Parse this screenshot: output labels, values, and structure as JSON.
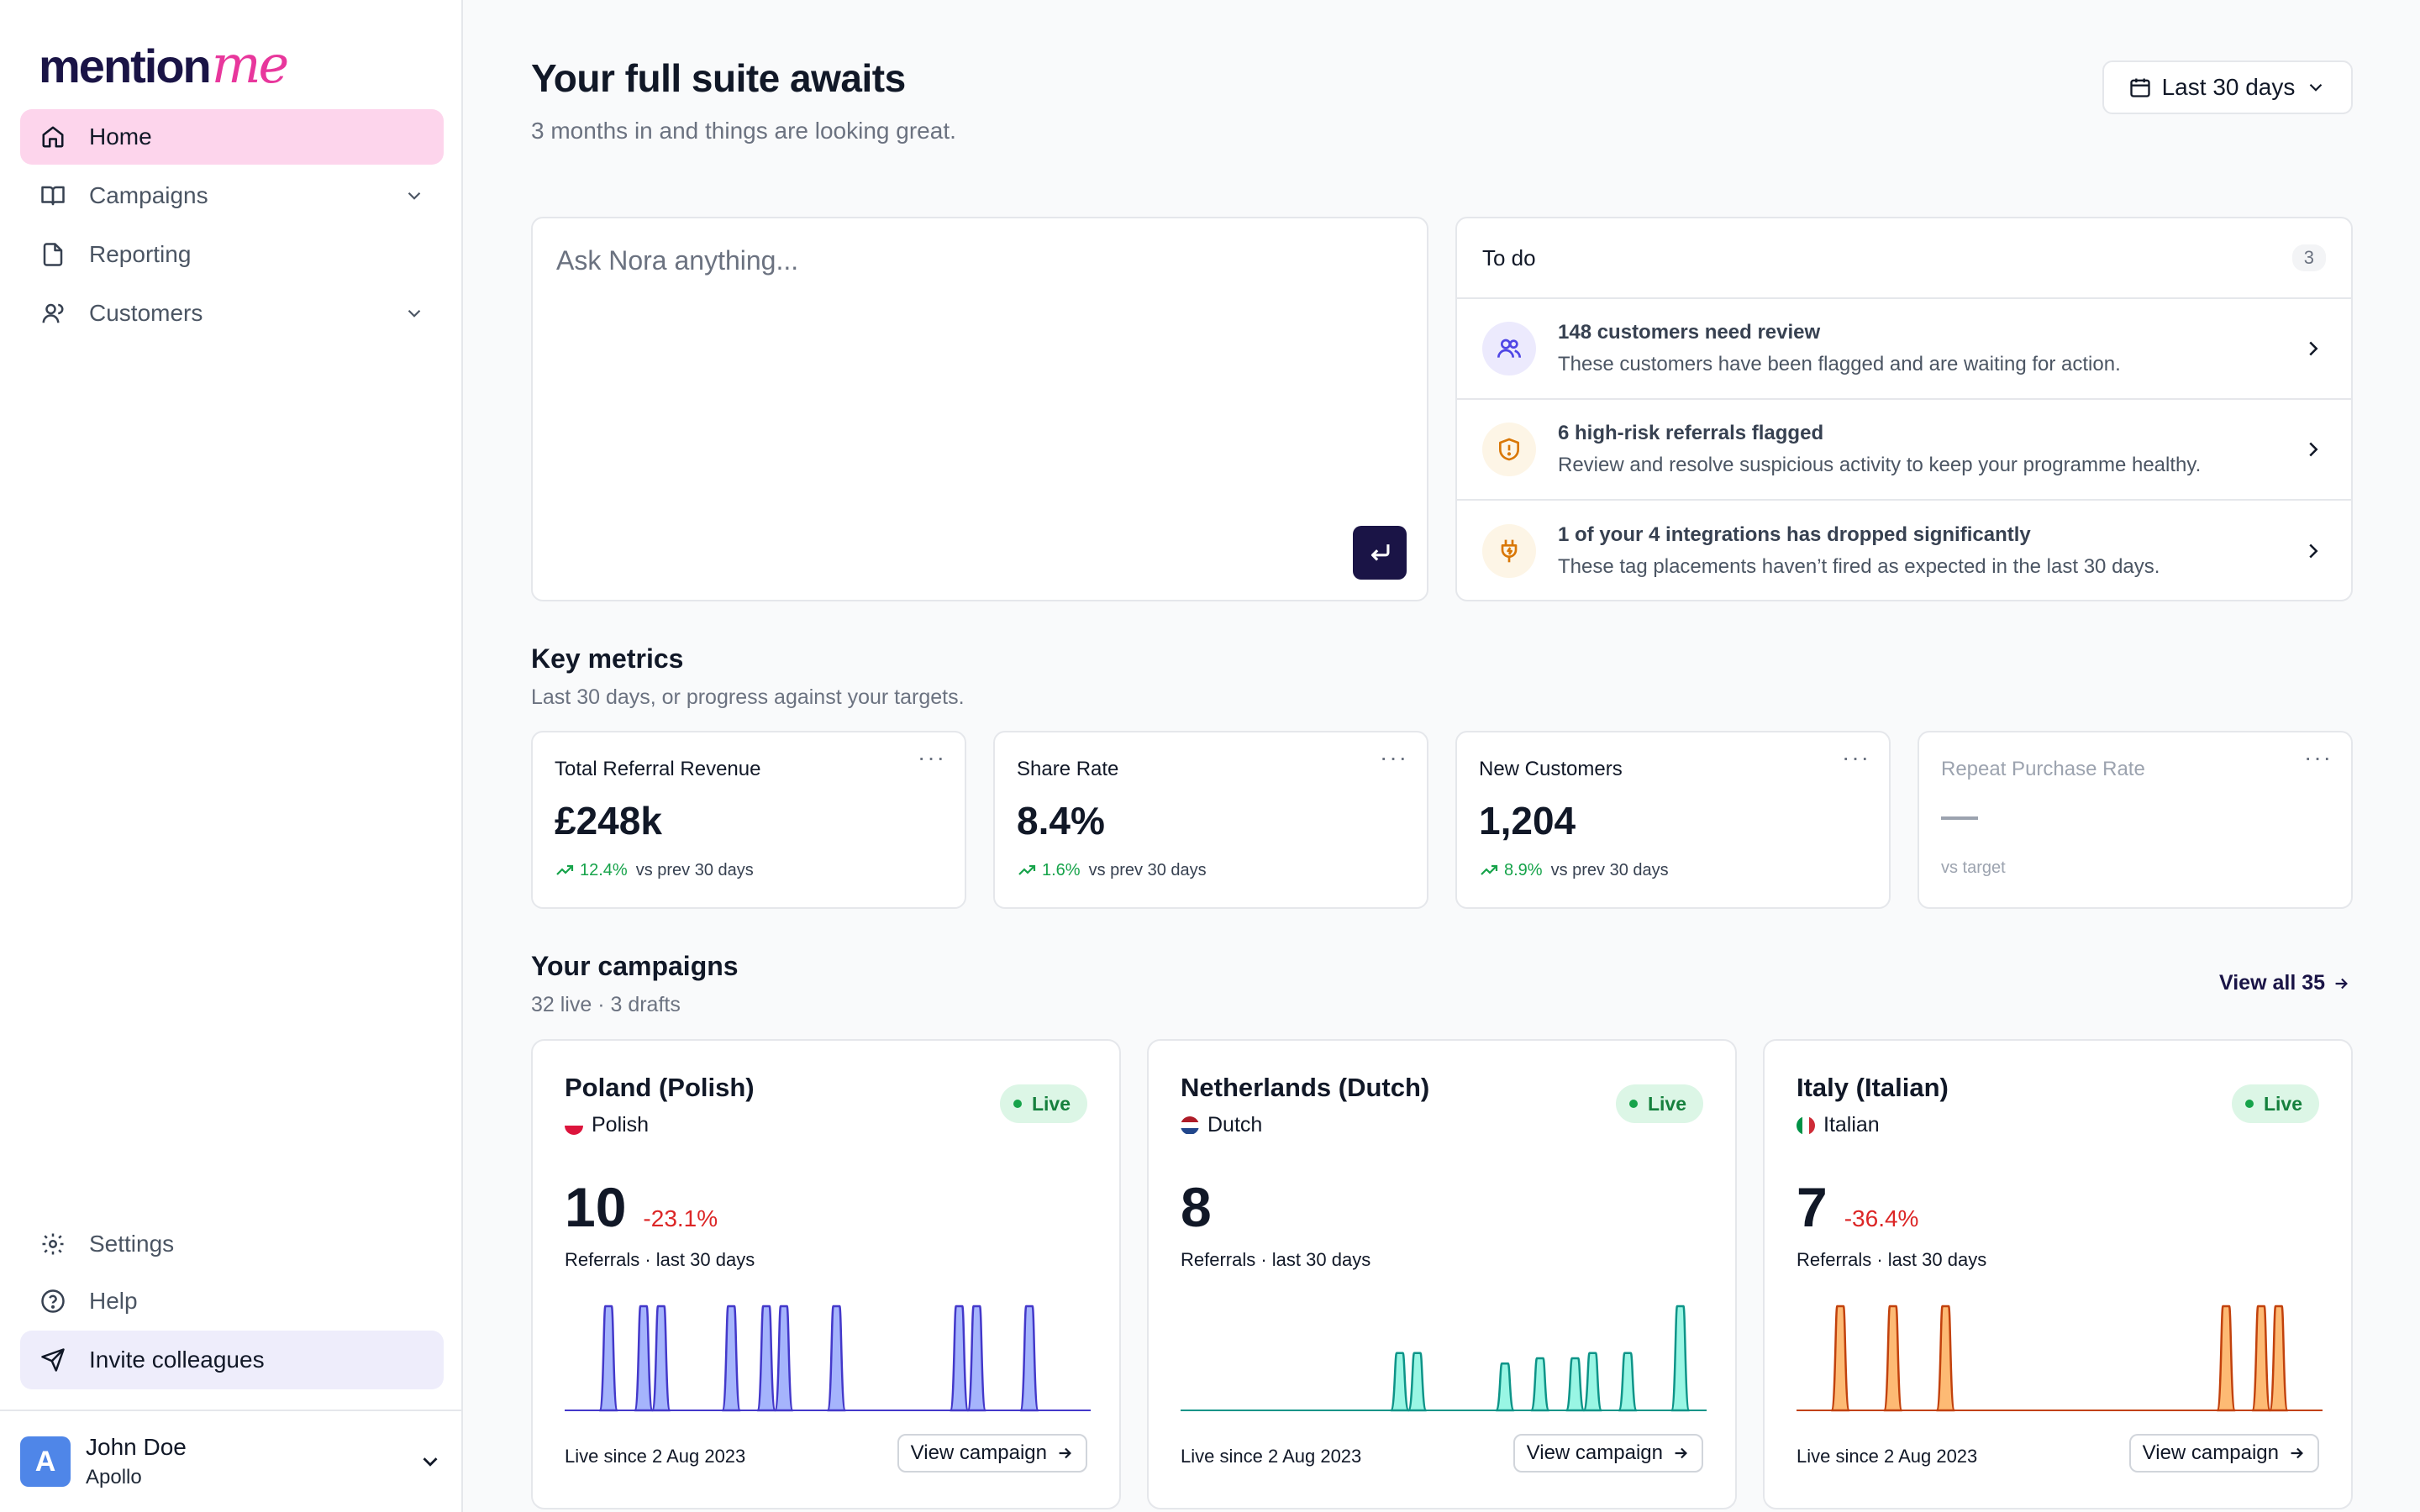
{
  "brand": {
    "logo_primary": "mention",
    "logo_accent": "me",
    "primary_color": "#1a1446",
    "accent_color": "#e8379c"
  },
  "nav": {
    "items": [
      {
        "label": "Home",
        "icon": "home-icon",
        "active": true
      },
      {
        "label": "Campaigns",
        "icon": "book-icon",
        "expandable": true
      },
      {
        "label": "Reporting",
        "icon": "file-icon"
      },
      {
        "label": "Customers",
        "icon": "user-icon",
        "expandable": true
      }
    ],
    "bottom": [
      {
        "label": "Settings",
        "icon": "gear-icon"
      },
      {
        "label": "Help",
        "icon": "help-icon"
      },
      {
        "label": "Invite colleagues",
        "icon": "send-icon"
      }
    ]
  },
  "user": {
    "initial": "A",
    "name": "John Doe",
    "org": "Apollo"
  },
  "header": {
    "title": "Your full suite awaits",
    "subtitle": "3 months in and things are looking great.",
    "date_range": "Last 30 days"
  },
  "ask": {
    "placeholder": "Ask Nora anything..."
  },
  "todo": {
    "title": "To do",
    "count": "3",
    "items": [
      {
        "title": "148 customers need review",
        "desc": "These customers have been flagged and are waiting for action.",
        "icon": "users-icon"
      },
      {
        "title": "6 high-risk referrals flagged",
        "desc": "Review and resolve suspicious activity to keep your programme healthy.",
        "icon": "shield-alert-icon"
      },
      {
        "title": "1 of your 4 integrations has dropped significantly",
        "desc": "These tag placements haven’t fired as expected in the last 30 days.",
        "icon": "plug-icon"
      }
    ]
  },
  "metrics": {
    "title": "Key metrics",
    "subtitle": "Last 30 days, or progress against your targets.",
    "cards": [
      {
        "label": "Total Referral Revenue",
        "value": "£248k",
        "delta": "12.4%",
        "compare": "vs prev 30 days"
      },
      {
        "label": "Share Rate",
        "value": "8.4%",
        "delta": "1.6%",
        "compare": "vs prev 30 days"
      },
      {
        "label": "New Customers",
        "value": "1,204",
        "delta": "8.9%",
        "compare": "vs prev 30 days"
      },
      {
        "label": "Repeat Purchase Rate",
        "value": "—",
        "compare": "vs target"
      }
    ]
  },
  "campaigns": {
    "title": "Your campaigns",
    "subtitle": "32 live · 3 drafts",
    "view_all": "View all 35",
    "cards": [
      {
        "name": "Poland (Polish)",
        "language": "Polish",
        "status": "Live",
        "referrals": "10",
        "delta": "-23.1%",
        "referrals_label": "Referrals · last 30 days",
        "since": "Live since 2 Aug 2023",
        "button": "View campaign",
        "color": "#4338ca",
        "fill": "#a5b4fc",
        "flag": [
          "#ffffff",
          "#dc143c"
        ],
        "flag_dir": "v"
      },
      {
        "name": "Netherlands (Dutch)",
        "language": "Dutch",
        "status": "Live",
        "referrals": "8",
        "delta": "",
        "referrals_label": "Referrals · last 30 days",
        "since": "Live since 2 Aug 2023",
        "button": "View campaign",
        "color": "#0d9488",
        "fill": "#99f6e4",
        "flag": [
          "#ae1c28",
          "#ffffff",
          "#21468b"
        ],
        "flag_dir": "v"
      },
      {
        "name": "Italy (Italian)",
        "language": "Italian",
        "status": "Live",
        "referrals": "7",
        "delta": "-36.4%",
        "referrals_label": "Referrals · last 30 days",
        "since": "Live since 2 Aug 2023",
        "button": "View campaign",
        "color": "#c2410c",
        "fill": "#fdba74",
        "flag": [
          "#009246",
          "#ffffff",
          "#ce2b37"
        ],
        "flag_dir": "h"
      }
    ]
  },
  "chart_data": [
    {
      "type": "area",
      "series": [
        {
          "values": [
            0,
            0,
            1,
            0,
            1,
            1,
            0,
            0,
            0,
            1,
            0,
            1,
            1,
            0,
            0,
            1,
            0,
            0,
            0,
            0,
            0,
            0,
            1,
            1,
            0,
            0,
            1,
            0,
            0,
            0
          ]
        }
      ]
    },
    {
      "type": "area",
      "series": [
        {
          "values": [
            0,
            0,
            0,
            0,
            0,
            0,
            0,
            0,
            0,
            0,
            0,
            0,
            0.55,
            0.55,
            0,
            0,
            0,
            0,
            0.45,
            0,
            0.5,
            0,
            0.5,
            0.55,
            0,
            0.55,
            0,
            0,
            1,
            0
          ]
        }
      ]
    },
    {
      "type": "area",
      "series": [
        {
          "values": [
            0,
            0,
            1,
            0,
            0,
            1,
            0,
            0,
            1,
            0,
            0,
            0,
            0,
            0,
            0,
            0,
            0,
            0,
            0,
            0,
            0,
            0,
            0,
            0,
            1,
            0,
            1,
            1,
            0,
            0
          ]
        }
      ]
    }
  ]
}
